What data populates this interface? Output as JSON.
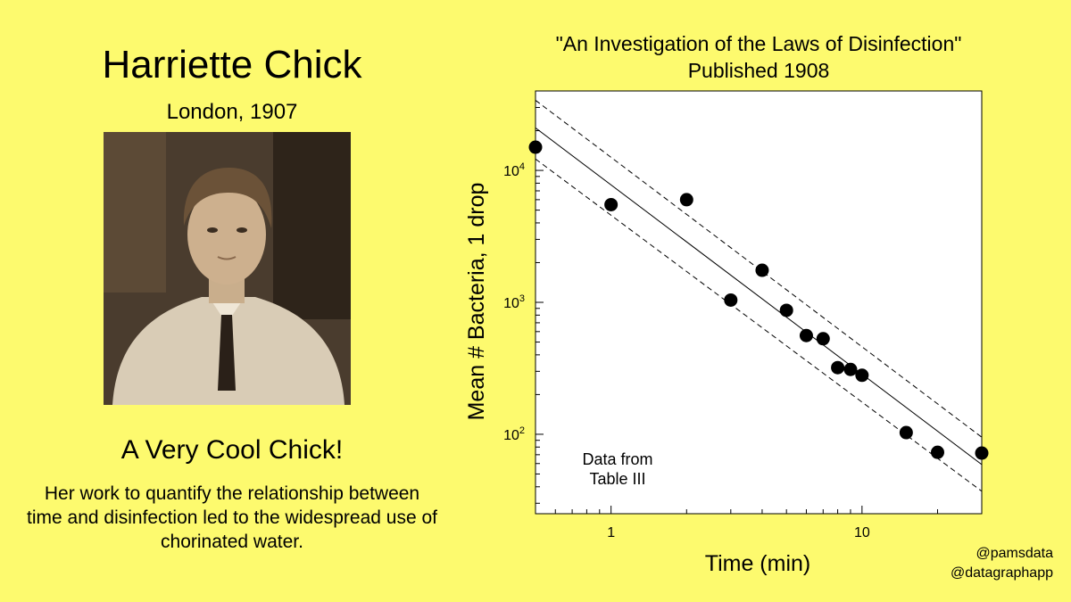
{
  "left": {
    "name": "Harriette Chick",
    "subtitle": "London, 1907",
    "tagline": "A Very Cool Chick!",
    "description": "Her work to quantify the relationship between time and disinfection led to the widespread use of chorinated water."
  },
  "credits": {
    "line1": "@pamsdata",
    "line2": "@datagraphapp"
  },
  "chart_data": {
    "type": "scatter",
    "title": "\"An Investigation of the Laws of Disinfection\"",
    "subtitle": "Published 1908",
    "xlabel": "Time (min)",
    "ylabel": "Mean # Bacteria, 1 drop",
    "x_scale": "log",
    "y_scale": "log",
    "xlim": [
      0.5,
      30
    ],
    "ylim": [
      25,
      40000
    ],
    "x_ticks": [
      1,
      10
    ],
    "x_tick_labels": [
      "1",
      "10"
    ],
    "y_ticks": [
      100,
      1000,
      10000
    ],
    "y_tick_labels": [
      {
        "base": "10",
        "exp": "2"
      },
      {
        "base": "10",
        "exp": "3"
      },
      {
        "base": "10",
        "exp": "4"
      }
    ],
    "annotation": [
      "Data from",
      "Table III"
    ],
    "points": [
      {
        "x": 0.5,
        "y": 15000
      },
      {
        "x": 1,
        "y": 5500
      },
      {
        "x": 2,
        "y": 6000
      },
      {
        "x": 3,
        "y": 1040
      },
      {
        "x": 4,
        "y": 1750
      },
      {
        "x": 5,
        "y": 870
      },
      {
        "x": 6,
        "y": 560
      },
      {
        "x": 7,
        "y": 530
      },
      {
        "x": 8,
        "y": 320
      },
      {
        "x": 9,
        "y": 310
      },
      {
        "x": 10,
        "y": 280
      },
      {
        "x": 15,
        "y": 103
      },
      {
        "x": 20,
        "y": 73
      },
      {
        "x": 30,
        "y": 72
      }
    ],
    "fit_line": {
      "x": [
        0.5,
        30
      ],
      "y": [
        21000,
        59
      ]
    },
    "ci_upper": {
      "x": [
        0.5,
        30
      ],
      "y": [
        34000,
        95
      ]
    },
    "ci_lower": {
      "x": [
        0.5,
        30
      ],
      "y": [
        12200,
        37
      ]
    },
    "grid": false,
    "colors": {
      "background": "#fdfa6e",
      "points": "#000000",
      "plot_area": "#ffffff"
    }
  }
}
